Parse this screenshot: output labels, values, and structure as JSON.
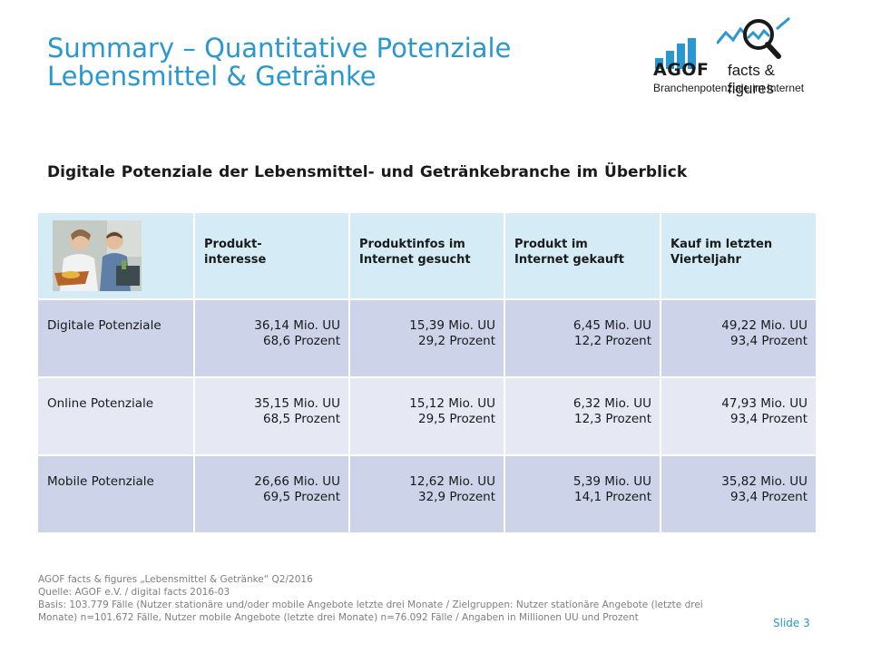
{
  "title": {
    "line1": "Summary – Quantitative Potenziale",
    "line2": "Lebensmittel & Getränke"
  },
  "logo": {
    "brand": "AGOF",
    "tagline": "facts & figures",
    "subline": "Branchenpotenziale im Internet",
    "accent_color": "#2a98d0"
  },
  "subtitle": "Digitale Potenziale der Lebensmittel- und Getränkebranche im Überblick",
  "table": {
    "headers": [
      {
        "line1": "Produkt-",
        "line2": "interesse"
      },
      {
        "line1": "Produktinfos im",
        "line2": "Internet gesucht"
      },
      {
        "line1": "Produkt im",
        "line2": "Internet gekauft"
      },
      {
        "line1": "Kauf im letzten",
        "line2": "Vierteljahr"
      }
    ],
    "rows": [
      {
        "label": "Digitale Potenziale",
        "cells": [
          {
            "mio": "36,14 Mio. UU",
            "pct": "68,6 Prozent"
          },
          {
            "mio": "15,39 Mio. UU",
            "pct": "29,2 Prozent"
          },
          {
            "mio": "6,45 Mio. UU",
            "pct": "12,2 Prozent"
          },
          {
            "mio": "49,22 Mio. UU",
            "pct": "93,4 Prozent"
          }
        ]
      },
      {
        "label": "Online Potenziale",
        "cells": [
          {
            "mio": "35,15 Mio. UU",
            "pct": "68,5 Prozent"
          },
          {
            "mio": "15,12 Mio. UU",
            "pct": "29,5 Prozent"
          },
          {
            "mio": "6,32 Mio. UU",
            "pct": "12,3 Prozent"
          },
          {
            "mio": "47,93 Mio. UU",
            "pct": "93,4 Prozent"
          }
        ]
      },
      {
        "label": "Mobile Potenziale",
        "cells": [
          {
            "mio": "26,66 Mio. UU",
            "pct": "69,5 Prozent"
          },
          {
            "mio": "12,62 Mio. UU",
            "pct": "32,9 Prozent"
          },
          {
            "mio": "5,39 Mio. UU",
            "pct": "14,1 Prozent"
          },
          {
            "mio": "35,82 Mio. UU",
            "pct": "93,4 Prozent"
          }
        ]
      }
    ]
  },
  "footer": {
    "line1": "AGOF facts & figures „Lebensmittel & Getränke“ Q2/2016",
    "line2": "Quelle: AGOF e.V. / digital facts 2016-03",
    "line3": "Basis: 103.779 Fälle (Nutzer stationäre und/oder mobile Angebote letzte drei Monate / Zielgruppen: Nutzer stationäre Angebote (letzte drei",
    "line4": "Monate) n=101.672 Fälle, Nutzer mobile Angebote (letzte drei Monate) n=76.092 Fälle / Angaben in Millionen UU und Prozent"
  },
  "slide_number": "Slide 3"
}
